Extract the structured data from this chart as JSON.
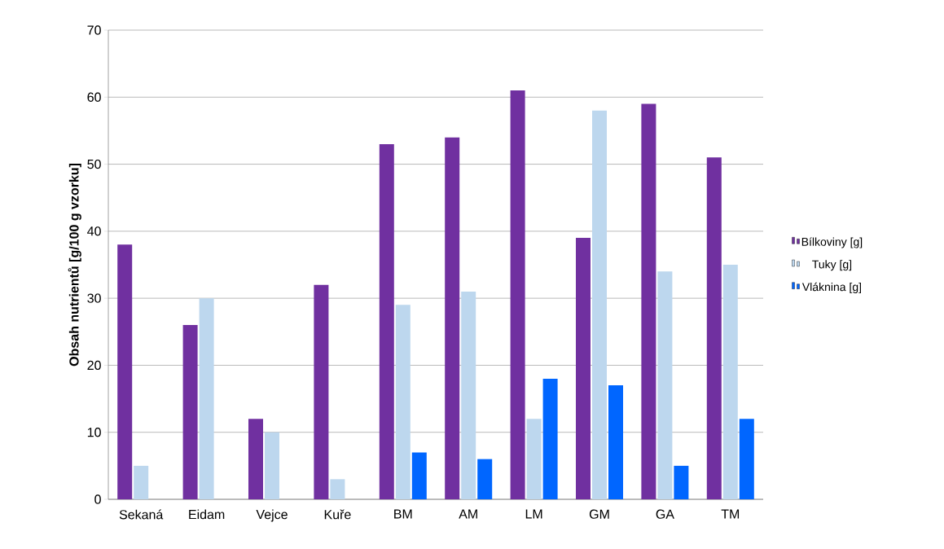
{
  "chart_data": {
    "type": "bar",
    "ylabel": "Obsah  nutrientů [g/100 g vzorku]",
    "categories": [
      "Sekaná",
      "Eidam",
      "Vejce",
      "Kuře",
      "BM",
      "AM",
      "LM",
      "GM",
      "GA",
      "TM"
    ],
    "series": [
      {
        "name": "Bílkoviny [g]",
        "color": "#7030a0",
        "values": [
          38,
          26,
          12,
          32,
          53,
          54,
          61,
          39,
          59,
          51
        ]
      },
      {
        "name": "Tuky [g]",
        "color": "#bdd7ee",
        "values": [
          5,
          30,
          10,
          3,
          29,
          31,
          12,
          58,
          34,
          35
        ]
      },
      {
        "name": "Vláknina [g]",
        "color": "#0066ff",
        "values": [
          null,
          null,
          null,
          null,
          7,
          6,
          18,
          17,
          5,
          12
        ]
      }
    ],
    "ylim": [
      0,
      70
    ],
    "yticks": [
      0,
      10,
      20,
      30,
      40,
      50,
      60,
      70
    ],
    "grid": "y",
    "legend": "right"
  }
}
